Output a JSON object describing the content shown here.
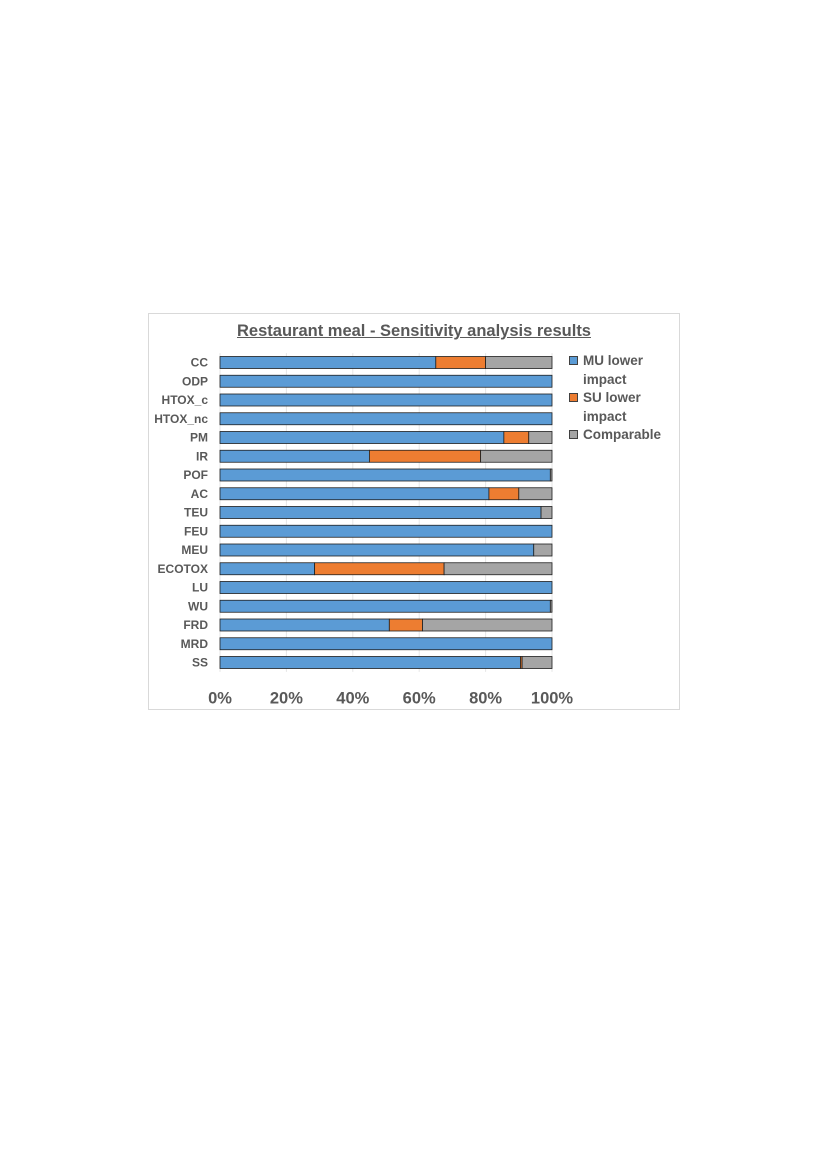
{
  "chart_data": {
    "type": "bar",
    "orientation": "horizontal",
    "stacked": true,
    "title": "Restaurant meal - Sensitivity analysis results",
    "categories": [
      "CC",
      "ODP",
      "HTOX_c",
      "HTOX_nc",
      "PM",
      "IR",
      "POF",
      "AC",
      "TEU",
      "FEU",
      "MEU",
      "ECOTOX",
      "LU",
      "WU",
      "FRD",
      "MRD",
      "SS"
    ],
    "series": [
      {
        "name": "MU lower impact",
        "color": "#5b9bd5",
        "values": [
          65,
          100,
          100,
          100,
          85.5,
          45,
          99.5,
          81,
          96.7,
          100,
          94.5,
          28.5,
          100,
          99.5,
          51,
          100,
          90.5
        ]
      },
      {
        "name": "SU lower impact",
        "color": "#ed7d31",
        "values": [
          15,
          0,
          0,
          0,
          7.5,
          33.5,
          0,
          9,
          0,
          0,
          0,
          39,
          0,
          0,
          10,
          0,
          0.5
        ]
      },
      {
        "name": "Comparable",
        "color": "#a5a5a5",
        "values": [
          20,
          0,
          0,
          0,
          7,
          21.5,
          0.5,
          10,
          3.3,
          0,
          5.5,
          32.5,
          0,
          0.5,
          39,
          0,
          9
        ]
      }
    ],
    "xlim": [
      0,
      100
    ],
    "xticks": [
      "0%",
      "20%",
      "40%",
      "60%",
      "80%",
      "100%"
    ],
    "grid": true,
    "legend_position": "right"
  },
  "legend": {
    "items": [
      {
        "label": "MU lower impact",
        "color": "#5b9bd5"
      },
      {
        "label": "SU lower impact",
        "color": "#ed7d31"
      },
      {
        "label": "Comparable",
        "color": "#a5a5a5"
      }
    ]
  }
}
